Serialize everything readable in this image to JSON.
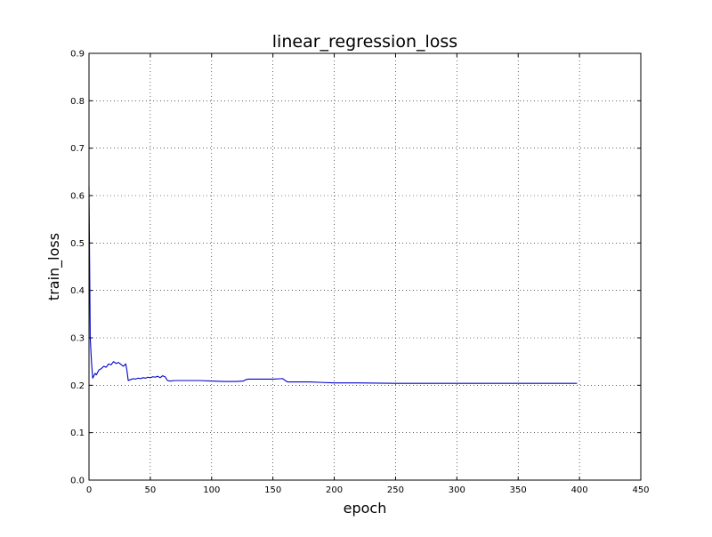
{
  "chart_data": {
    "type": "line",
    "title": "linear_regression_loss",
    "xlabel": "epoch",
    "ylabel": "train_loss",
    "xlim": [
      0,
      450
    ],
    "ylim": [
      0.0,
      0.9
    ],
    "x_ticks": [
      0,
      50,
      100,
      150,
      200,
      250,
      300,
      350,
      400,
      450
    ],
    "x_tick_labels": [
      "0",
      "50",
      "100",
      "150",
      "200",
      "250",
      "300",
      "350",
      "400",
      "450"
    ],
    "y_ticks": [
      0.0,
      0.1,
      0.2,
      0.3,
      0.4,
      0.5,
      0.6,
      0.7,
      0.8,
      0.9
    ],
    "y_tick_labels": [
      "0.0",
      "0.1",
      "0.2",
      "0.3",
      "0.4",
      "0.5",
      "0.6",
      "0.7",
      "0.8",
      "0.9"
    ],
    "grid": true,
    "legend": false,
    "series_color": "#0000cc",
    "series": [
      {
        "x": [
          0,
          1,
          2,
          3,
          4,
          5,
          6,
          8,
          10,
          12,
          14,
          16,
          18,
          20,
          22,
          24,
          26,
          28,
          30,
          31,
          32,
          34,
          36,
          38,
          40,
          42,
          44,
          46,
          48,
          50,
          52,
          54,
          56,
          58,
          60,
          62,
          64,
          66,
          70,
          80,
          90,
          100,
          110,
          120,
          126,
          128,
          130,
          140,
          150,
          158,
          160,
          162,
          170,
          180,
          190,
          200,
          220,
          250,
          300,
          350,
          398
        ],
        "values": [
          0.62,
          0.3,
          0.25,
          0.215,
          0.22,
          0.225,
          0.222,
          0.232,
          0.235,
          0.24,
          0.238,
          0.245,
          0.243,
          0.25,
          0.246,
          0.248,
          0.244,
          0.24,
          0.245,
          0.23,
          0.21,
          0.212,
          0.214,
          0.213,
          0.215,
          0.214,
          0.216,
          0.215,
          0.217,
          0.216,
          0.218,
          0.217,
          0.219,
          0.216,
          0.22,
          0.218,
          0.21,
          0.209,
          0.21,
          0.21,
          0.21,
          0.209,
          0.208,
          0.208,
          0.209,
          0.212,
          0.213,
          0.213,
          0.213,
          0.214,
          0.21,
          0.207,
          0.207,
          0.207,
          0.206,
          0.205,
          0.205,
          0.204,
          0.204,
          0.204,
          0.204
        ]
      }
    ]
  }
}
